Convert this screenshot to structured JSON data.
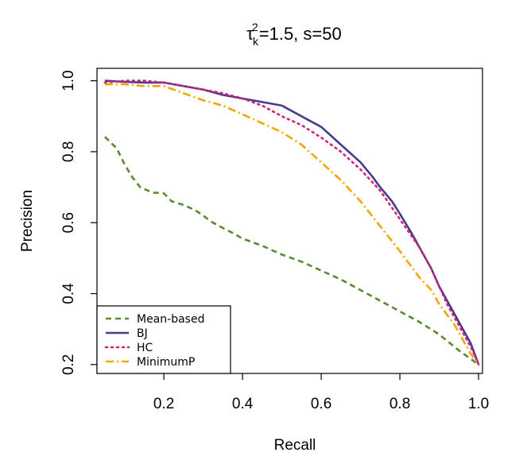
{
  "chart_data": {
    "type": "line",
    "title": {
      "tau": "τ",
      "sub": "k",
      "sup": "2",
      "rest": "=1.5,  s=50"
    },
    "xlabel": "Recall",
    "ylabel": "Precision",
    "xlim": [
      0.03,
      1.01
    ],
    "ylim": [
      0.175,
      1.035
    ],
    "xticks": [
      0.2,
      0.4,
      0.6,
      0.8,
      1.0
    ],
    "xtick_labels": [
      "0.2",
      "0.4",
      "0.6",
      "0.8",
      "1.0"
    ],
    "yticks": [
      0.2,
      0.4,
      0.6,
      0.8,
      1.0
    ],
    "ytick_labels": [
      "0.2",
      "0.4",
      "0.6",
      "0.8",
      "1.0"
    ],
    "grid": false,
    "legend_position": "bottom-left",
    "series": [
      {
        "name": "Mean-based",
        "color": "#5a8a32",
        "dash": "dashed",
        "x": [
          0.05,
          0.08,
          0.1,
          0.12,
          0.14,
          0.17,
          0.2,
          0.22,
          0.25,
          0.28,
          0.3,
          0.32,
          0.35,
          0.38,
          0.4,
          0.45,
          0.5,
          0.55,
          0.6,
          0.65,
          0.7,
          0.75,
          0.8,
          0.85,
          0.9,
          0.95,
          1.0
        ],
        "y": [
          0.842,
          0.81,
          0.765,
          0.728,
          0.7,
          0.685,
          0.683,
          0.66,
          0.65,
          0.635,
          0.62,
          0.603,
          0.585,
          0.568,
          0.555,
          0.535,
          0.51,
          0.49,
          0.465,
          0.44,
          0.41,
          0.38,
          0.35,
          0.32,
          0.285,
          0.24,
          0.2
        ]
      },
      {
        "name": "BJ",
        "color": "#4b3a8c",
        "dash": "solid",
        "x": [
          0.05,
          0.1,
          0.15,
          0.2,
          0.25,
          0.3,
          0.35,
          0.4,
          0.45,
          0.5,
          0.55,
          0.6,
          0.65,
          0.7,
          0.73,
          0.75,
          0.78,
          0.8,
          0.83,
          0.85,
          0.88,
          0.9,
          0.92,
          0.94,
          0.96,
          0.98,
          0.99,
          1.0
        ],
        "y": [
          1.0,
          0.997,
          0.995,
          0.995,
          0.985,
          0.975,
          0.96,
          0.95,
          0.94,
          0.93,
          0.9,
          0.87,
          0.82,
          0.77,
          0.73,
          0.7,
          0.66,
          0.625,
          0.57,
          0.53,
          0.47,
          0.42,
          0.38,
          0.34,
          0.3,
          0.26,
          0.23,
          0.2
        ]
      },
      {
        "name": "HC",
        "color": "#d4237a",
        "dash": "dotted",
        "x": [
          0.05,
          0.1,
          0.15,
          0.2,
          0.25,
          0.3,
          0.35,
          0.4,
          0.45,
          0.5,
          0.55,
          0.6,
          0.65,
          0.7,
          0.75,
          0.8,
          0.85,
          0.88,
          0.9,
          0.92,
          0.94,
          0.96,
          0.98,
          1.0
        ],
        "y": [
          0.995,
          1.0,
          1.0,
          0.995,
          0.985,
          0.975,
          0.965,
          0.95,
          0.93,
          0.9,
          0.875,
          0.84,
          0.8,
          0.75,
          0.69,
          0.61,
          0.53,
          0.47,
          0.42,
          0.37,
          0.33,
          0.29,
          0.25,
          0.2
        ]
      },
      {
        "name": "MinimumP",
        "color": "#f0a800",
        "dash": "dashdot",
        "x": [
          0.05,
          0.1,
          0.15,
          0.2,
          0.25,
          0.3,
          0.35,
          0.4,
          0.45,
          0.5,
          0.55,
          0.6,
          0.65,
          0.7,
          0.75,
          0.8,
          0.85,
          0.88,
          0.9,
          0.92,
          0.94,
          0.96,
          0.98,
          1.0
        ],
        "y": [
          0.99,
          0.99,
          0.985,
          0.985,
          0.965,
          0.945,
          0.93,
          0.905,
          0.88,
          0.855,
          0.82,
          0.77,
          0.72,
          0.66,
          0.59,
          0.52,
          0.445,
          0.41,
          0.37,
          0.34,
          0.31,
          0.27,
          0.23,
          0.2
        ]
      }
    ]
  }
}
